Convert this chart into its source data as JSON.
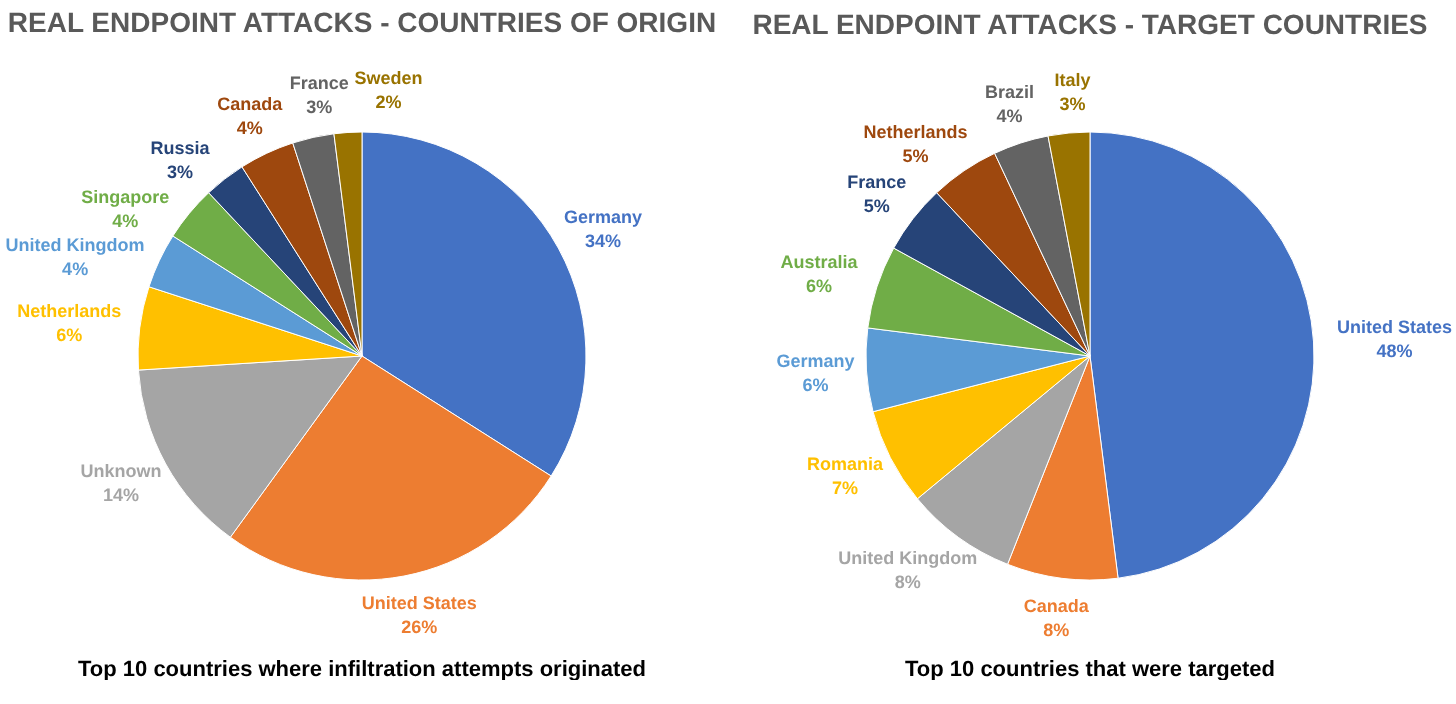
{
  "chart_data": [
    {
      "type": "pie",
      "title": "REAL ENDPOINT ATTACKS - COUNTRIES OF ORIGIN",
      "categories": [
        "Germany",
        "United States",
        "Unknown",
        "Netherlands",
        "United Kingdom",
        "Singapore",
        "Russia",
        "Canada",
        "France",
        "Sweden"
      ],
      "values": [
        34,
        26,
        14,
        6,
        4,
        4,
        3,
        4,
        3,
        2
      ],
      "value_labels": [
        "34%",
        "26%",
        "14%",
        "6%",
        "4%",
        "4%",
        "3%",
        "4%",
        "3%",
        "2%"
      ],
      "colors": [
        "#4472c4",
        "#ed7d31",
        "#a5a5a5",
        "#ffc000",
        "#5b9bd5",
        "#70ad47",
        "#264478",
        "#9e480e",
        "#636363",
        "#997300"
      ],
      "annotations": [
        "Top 10 countries where infiltration attempts originated"
      ]
    },
    {
      "type": "pie",
      "title": "REAL ENDPOINT ATTACKS - TARGET COUNTRIES",
      "categories": [
        "United States",
        "Canada",
        "United Kingdom",
        "Romania",
        "Germany",
        "Australia",
        "France",
        "Netherlands",
        "Brazil",
        "Italy"
      ],
      "values": [
        48,
        8,
        8,
        7,
        6,
        6,
        5,
        5,
        4,
        3
      ],
      "value_labels": [
        "48%",
        "8%",
        "8%",
        "7%",
        "6%",
        "6%",
        "5%",
        "5%",
        "4%",
        "3%"
      ],
      "colors": [
        "#4472c4",
        "#ed7d31",
        "#a5a5a5",
        "#ffc000",
        "#5b9bd5",
        "#70ad47",
        "#264478",
        "#9e480e",
        "#636363",
        "#997300"
      ],
      "annotations": [
        "Top 10 countries that were targeted"
      ]
    }
  ]
}
